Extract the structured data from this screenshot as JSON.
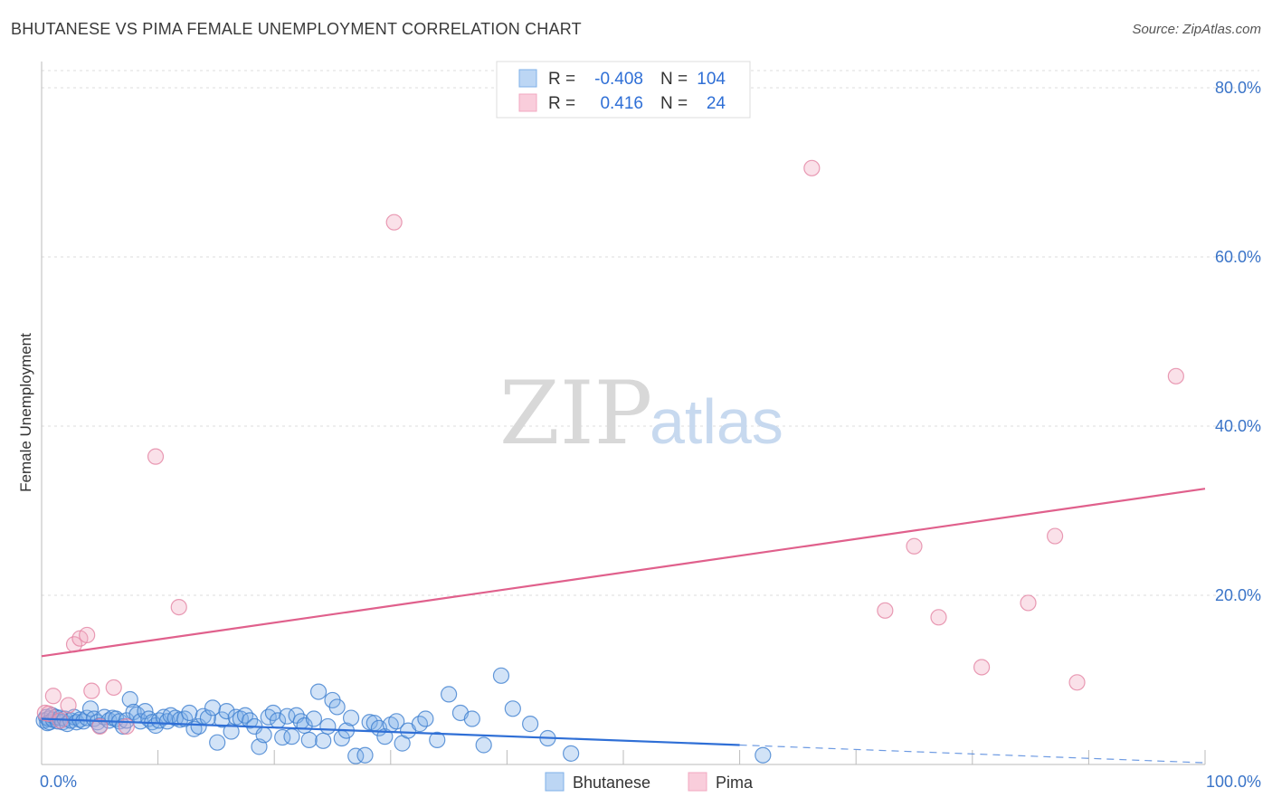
{
  "header": {
    "title": "BHUTANESE VS PIMA FEMALE UNEMPLOYMENT CORRELATION CHART",
    "source": "Source: ZipAtlas.com"
  },
  "watermark": {
    "zip": "ZIP",
    "atlas": "atlas"
  },
  "legend": {
    "rows": [
      {
        "r_label": "R =",
        "r_value": "-0.408",
        "n_label": "N =",
        "n_value": "104",
        "color": "#7fb0e8"
      },
      {
        "r_label": "R =",
        "r_value": "0.416",
        "n_label": "N =",
        "n_value": "24",
        "color": "#f2a8c0"
      }
    ]
  },
  "bottom_legend": [
    {
      "label": "Bhutanese",
      "color": "#7fb0e8"
    },
    {
      "label": "Pima",
      "color": "#f2a8c0"
    }
  ],
  "chart_data": {
    "type": "scatter",
    "title": "BHUTANESE VS PIMA FEMALE UNEMPLOYMENT CORRELATION CHART",
    "xlabel": "",
    "ylabel": "Female Unemployment",
    "xlim": [
      0,
      100
    ],
    "ylim": [
      0,
      82
    ],
    "x_tick_labels": [
      "0.0%",
      "100.0%"
    ],
    "y_ticks": [
      20,
      40,
      60,
      80
    ],
    "y_tick_labels": [
      "20.0%",
      "40.0%",
      "60.0%",
      "80.0%"
    ],
    "grid": true,
    "legend_position": "top-center",
    "series": [
      {
        "name": "Bhutanese",
        "color": "#7fb0e8",
        "stroke": "#3f7fd0",
        "points": [
          [
            0.2,
            5.2
          ],
          [
            0.4,
            5.6
          ],
          [
            0.5,
            4.9
          ],
          [
            0.6,
            5.4
          ],
          [
            0.7,
            5.0
          ],
          [
            0.9,
            5.8
          ],
          [
            1.0,
            5.3
          ],
          [
            1.2,
            5.6
          ],
          [
            1.4,
            5.1
          ],
          [
            1.6,
            5.5
          ],
          [
            1.8,
            5.0
          ],
          [
            2.0,
            5.4
          ],
          [
            2.2,
            4.8
          ],
          [
            2.5,
            5.2
          ],
          [
            2.8,
            5.6
          ],
          [
            3.0,
            5.0
          ],
          [
            3.3,
            5.3
          ],
          [
            3.6,
            5.1
          ],
          [
            3.9,
            5.5
          ],
          [
            4.2,
            6.6
          ],
          [
            4.5,
            5.4
          ],
          [
            4.8,
            5.0
          ],
          [
            5.0,
            4.6
          ],
          [
            5.4,
            5.6
          ],
          [
            5.8,
            5.2
          ],
          [
            6.1,
            5.5
          ],
          [
            6.4,
            5.4
          ],
          [
            6.7,
            5.1
          ],
          [
            7.0,
            4.5
          ],
          [
            7.3,
            5.2
          ],
          [
            7.6,
            7.7
          ],
          [
            7.9,
            6.2
          ],
          [
            8.2,
            5.9
          ],
          [
            8.5,
            5.1
          ],
          [
            8.9,
            6.3
          ],
          [
            9.2,
            5.4
          ],
          [
            9.5,
            5.0
          ],
          [
            9.8,
            4.6
          ],
          [
            10.1,
            5.2
          ],
          [
            10.5,
            5.6
          ],
          [
            10.8,
            5.1
          ],
          [
            11.1,
            5.8
          ],
          [
            11.5,
            5.5
          ],
          [
            11.9,
            5.3
          ],
          [
            12.3,
            5.4
          ],
          [
            12.7,
            6.1
          ],
          [
            13.1,
            4.2
          ],
          [
            13.5,
            4.5
          ],
          [
            13.9,
            5.7
          ],
          [
            14.3,
            5.5
          ],
          [
            14.7,
            6.7
          ],
          [
            15.1,
            2.6
          ],
          [
            15.5,
            5.3
          ],
          [
            15.9,
            6.3
          ],
          [
            16.3,
            3.9
          ],
          [
            16.7,
            5.6
          ],
          [
            17.1,
            5.4
          ],
          [
            17.5,
            5.8
          ],
          [
            17.9,
            5.2
          ],
          [
            18.3,
            4.5
          ],
          [
            18.7,
            2.1
          ],
          [
            19.1,
            3.5
          ],
          [
            19.5,
            5.6
          ],
          [
            19.9,
            6.1
          ],
          [
            20.3,
            5.2
          ],
          [
            20.7,
            3.2
          ],
          [
            21.1,
            5.7
          ],
          [
            21.5,
            3.3
          ],
          [
            21.9,
            5.8
          ],
          [
            22.3,
            5.1
          ],
          [
            22.6,
            4.6
          ],
          [
            23.0,
            2.9
          ],
          [
            23.4,
            5.4
          ],
          [
            23.8,
            8.6
          ],
          [
            24.2,
            2.8
          ],
          [
            24.6,
            4.5
          ],
          [
            25.0,
            7.6
          ],
          [
            25.4,
            6.8
          ],
          [
            25.8,
            3.1
          ],
          [
            26.2,
            4.0
          ],
          [
            26.6,
            5.5
          ],
          [
            27.0,
            1.0
          ],
          [
            27.8,
            1.1
          ],
          [
            28.2,
            5.0
          ],
          [
            28.6,
            4.9
          ],
          [
            29.0,
            4.3
          ],
          [
            29.5,
            3.3
          ],
          [
            30.0,
            4.7
          ],
          [
            30.5,
            5.1
          ],
          [
            31.0,
            2.5
          ],
          [
            31.5,
            4.0
          ],
          [
            32.5,
            4.8
          ],
          [
            33.0,
            5.4
          ],
          [
            34.0,
            2.9
          ],
          [
            35.0,
            8.3
          ],
          [
            36.0,
            6.1
          ],
          [
            37.0,
            5.4
          ],
          [
            38.0,
            2.3
          ],
          [
            39.5,
            10.5
          ],
          [
            40.5,
            6.6
          ],
          [
            42.0,
            4.8
          ],
          [
            43.5,
            3.1
          ],
          [
            45.5,
            1.3
          ],
          [
            62.0,
            1.1
          ]
        ]
      },
      {
        "name": "Pima",
        "color": "#f2a8c0",
        "stroke": "#e383a3",
        "points": [
          [
            0.3,
            6.1
          ],
          [
            0.6,
            6.0
          ],
          [
            1.0,
            8.1
          ],
          [
            1.6,
            5.2
          ],
          [
            2.3,
            7.0
          ],
          [
            2.8,
            14.2
          ],
          [
            3.3,
            14.9
          ],
          [
            3.9,
            15.3
          ],
          [
            4.3,
            8.7
          ],
          [
            5.0,
            4.5
          ],
          [
            6.2,
            9.1
          ],
          [
            7.3,
            4.5
          ],
          [
            9.8,
            36.4
          ],
          [
            11.8,
            18.6
          ],
          [
            30.3,
            64.1
          ],
          [
            66.2,
            70.5
          ],
          [
            72.5,
            18.2
          ],
          [
            75.0,
            25.8
          ],
          [
            77.1,
            17.4
          ],
          [
            80.8,
            11.5
          ],
          [
            84.8,
            19.1
          ],
          [
            87.1,
            27.0
          ],
          [
            89.0,
            9.7
          ],
          [
            97.5,
            45.9
          ]
        ]
      }
    ],
    "trendlines": [
      {
        "series": "Bhutanese",
        "x": [
          0,
          60
        ],
        "y": [
          5.4,
          2.3
        ],
        "dashed_extension": [
          60,
          100,
          2.3,
          0.2
        ],
        "color": "#2f6fd6"
      },
      {
        "series": "Pima",
        "x": [
          0,
          100
        ],
        "y": [
          12.8,
          32.6
        ],
        "color": "#e0608c"
      }
    ]
  }
}
